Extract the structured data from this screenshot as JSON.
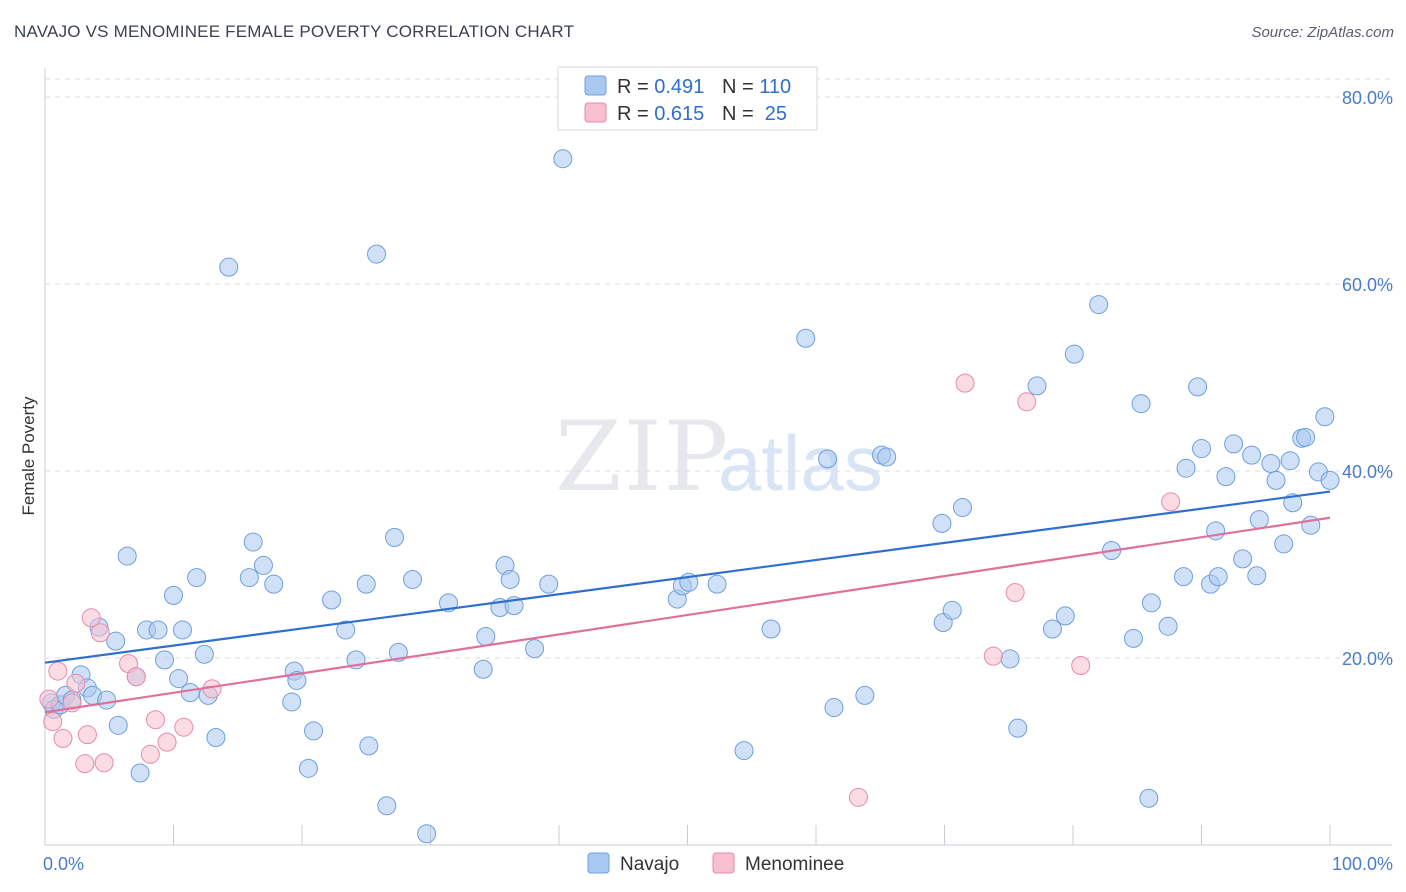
{
  "title": "NAVAJO VS MENOMINEE FEMALE POVERTY CORRELATION CHART",
  "source": "Source: ZipAtlas.com",
  "watermark": {
    "zip": "ZIP",
    "atlas": "atlas"
  },
  "colors": {
    "navajo_fill": "#a9c8f0",
    "navajo_stroke": "#6f9fdc",
    "navajo_line": "#2f6fcf",
    "menominee_fill": "#f7bfd0",
    "menominee_stroke": "#e88aa8",
    "menominee_line": "#e0709a",
    "value_text": "#2f6fcf",
    "grid": "#d9dce3"
  },
  "legend": {
    "rows": [
      {
        "r_label": "R = ",
        "r_value": "0.491",
        "n_label": "N = ",
        "n_value": "110"
      },
      {
        "r_label": "R = ",
        "r_value": "0.615",
        "n_label": "N = ",
        "n_value": " 25"
      }
    ]
  },
  "chart_data": {
    "type": "scatter",
    "title": "NAVAJO VS MENOMINEE FEMALE POVERTY CORRELATION CHART",
    "xlabel": "",
    "ylabel": "Female Poverty",
    "xlim": [
      0,
      100
    ],
    "ylim": [
      0,
      80
    ],
    "x_tick_labels": [
      "0.0%",
      "100.0%"
    ],
    "y_ticks": [
      20,
      40,
      60,
      80
    ],
    "y_tick_labels": [
      "20.0%",
      "40.0%",
      "60.0%",
      "80.0%"
    ],
    "grid": "horizontal dashed",
    "legend_position": "top-center",
    "series": [
      {
        "name": "Navajo",
        "trend": {
          "x": [
            0,
            100
          ],
          "y": [
            19.5,
            37.8
          ]
        },
        "points": [
          [
            0.5,
            15.2
          ],
          [
            0.7,
            14.5
          ],
          [
            1.2,
            15.0
          ],
          [
            1.6,
            16.0
          ],
          [
            2.1,
            15.5
          ],
          [
            2.8,
            18.2
          ],
          [
            3.3,
            16.8
          ],
          [
            3.7,
            16.0
          ],
          [
            4.2,
            23.3
          ],
          [
            4.8,
            15.5
          ],
          [
            5.5,
            21.8
          ],
          [
            5.7,
            12.8
          ],
          [
            6.4,
            30.9
          ],
          [
            7.1,
            18.0
          ],
          [
            7.4,
            7.7
          ],
          [
            7.9,
            23.0
          ],
          [
            8.8,
            23.0
          ],
          [
            9.3,
            19.8
          ],
          [
            10.0,
            26.7
          ],
          [
            10.4,
            17.8
          ],
          [
            10.7,
            23.0
          ],
          [
            11.3,
            16.3
          ],
          [
            11.8,
            28.6
          ],
          [
            12.4,
            20.4
          ],
          [
            12.7,
            16.0
          ],
          [
            13.3,
            11.5
          ],
          [
            14.3,
            61.8
          ],
          [
            15.9,
            28.6
          ],
          [
            16.2,
            32.4
          ],
          [
            17.0,
            29.9
          ],
          [
            17.8,
            27.9
          ],
          [
            19.2,
            15.3
          ],
          [
            19.4,
            18.6
          ],
          [
            19.6,
            17.6
          ],
          [
            20.5,
            8.2
          ],
          [
            20.9,
            12.2
          ],
          [
            22.3,
            26.2
          ],
          [
            23.4,
            23.0
          ],
          [
            24.2,
            19.8
          ],
          [
            25.0,
            27.9
          ],
          [
            25.2,
            10.6
          ],
          [
            25.8,
            63.2
          ],
          [
            26.6,
            4.2
          ],
          [
            27.2,
            32.9
          ],
          [
            27.5,
            20.6
          ],
          [
            28.6,
            28.4
          ],
          [
            29.7,
            1.2
          ],
          [
            31.4,
            25.9
          ],
          [
            34.1,
            18.8
          ],
          [
            34.3,
            22.3
          ],
          [
            35.4,
            25.4
          ],
          [
            35.8,
            29.9
          ],
          [
            36.2,
            28.4
          ],
          [
            36.5,
            25.6
          ],
          [
            38.1,
            21.0
          ],
          [
            39.2,
            27.9
          ],
          [
            40.3,
            73.4
          ],
          [
            49.2,
            26.3
          ],
          [
            49.6,
            27.7
          ],
          [
            50.1,
            28.1
          ],
          [
            52.3,
            27.9
          ],
          [
            54.4,
            10.1
          ],
          [
            56.5,
            23.1
          ],
          [
            59.2,
            54.2
          ],
          [
            60.9,
            41.3
          ],
          [
            61.4,
            14.7
          ],
          [
            63.8,
            16.0
          ],
          [
            65.1,
            41.7
          ],
          [
            65.5,
            41.5
          ],
          [
            69.8,
            34.4
          ],
          [
            69.9,
            23.8
          ],
          [
            70.6,
            25.1
          ],
          [
            71.4,
            36.1
          ],
          [
            75.1,
            19.9
          ],
          [
            75.7,
            12.5
          ],
          [
            77.2,
            49.1
          ],
          [
            78.4,
            23.1
          ],
          [
            79.4,
            24.5
          ],
          [
            80.1,
            52.5
          ],
          [
            82.0,
            57.8
          ],
          [
            83.0,
            31.5
          ],
          [
            84.7,
            22.1
          ],
          [
            85.3,
            47.2
          ],
          [
            85.9,
            5.0
          ],
          [
            86.1,
            25.9
          ],
          [
            87.4,
            23.4
          ],
          [
            88.6,
            28.7
          ],
          [
            88.8,
            40.3
          ],
          [
            89.7,
            49.0
          ],
          [
            90.0,
            42.4
          ],
          [
            90.7,
            27.9
          ],
          [
            91.1,
            33.6
          ],
          [
            91.3,
            28.7
          ],
          [
            91.9,
            39.4
          ],
          [
            92.5,
            42.9
          ],
          [
            93.2,
            30.6
          ],
          [
            93.9,
            41.7
          ],
          [
            94.3,
            28.8
          ],
          [
            94.5,
            34.8
          ],
          [
            95.4,
            40.8
          ],
          [
            95.8,
            39.0
          ],
          [
            96.4,
            32.2
          ],
          [
            96.9,
            41.1
          ],
          [
            97.1,
            36.6
          ],
          [
            97.8,
            43.5
          ],
          [
            98.1,
            43.6
          ],
          [
            98.5,
            34.2
          ],
          [
            99.1,
            39.9
          ],
          [
            99.6,
            45.8
          ],
          [
            100.0,
            39.0
          ]
        ]
      },
      {
        "name": "Menominee",
        "trend": {
          "x": [
            0,
            100
          ],
          "y": [
            14.2,
            35.0
          ]
        },
        "points": [
          [
            0.3,
            15.6
          ],
          [
            0.6,
            13.2
          ],
          [
            1.0,
            18.6
          ],
          [
            1.4,
            11.4
          ],
          [
            2.1,
            15.2
          ],
          [
            2.4,
            17.3
          ],
          [
            3.1,
            8.7
          ],
          [
            3.3,
            11.8
          ],
          [
            3.6,
            24.3
          ],
          [
            4.3,
            22.7
          ],
          [
            4.6,
            8.8
          ],
          [
            6.5,
            19.4
          ],
          [
            7.1,
            18.0
          ],
          [
            8.2,
            9.7
          ],
          [
            8.6,
            13.4
          ],
          [
            9.5,
            11.0
          ],
          [
            10.8,
            12.6
          ],
          [
            13.0,
            16.7
          ],
          [
            63.3,
            5.1
          ],
          [
            71.6,
            49.4
          ],
          [
            73.8,
            20.2
          ],
          [
            75.5,
            27.0
          ],
          [
            76.4,
            47.4
          ],
          [
            80.6,
            19.2
          ],
          [
            87.6,
            36.7
          ]
        ]
      }
    ]
  },
  "bottom_legend": [
    "Navajo",
    "Menominee"
  ]
}
